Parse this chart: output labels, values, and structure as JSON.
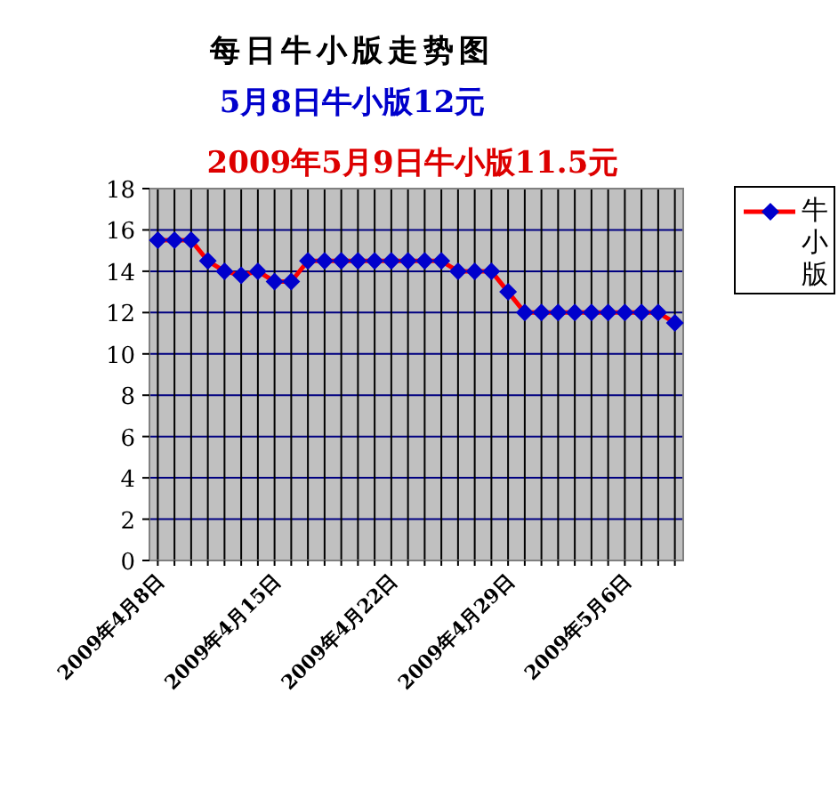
{
  "chart_data": {
    "type": "line",
    "title": "每日牛小版走势图",
    "subtitle": "5月8日牛小版12元",
    "annotations": [
      "2009年5月9日牛小版11.5元"
    ],
    "categories": [
      "2009年4月8日",
      null,
      null,
      null,
      null,
      null,
      null,
      "2009年4月15日",
      null,
      null,
      null,
      null,
      null,
      null,
      "2009年4月22日",
      null,
      null,
      null,
      null,
      null,
      null,
      "2009年4月29日",
      null,
      null,
      null,
      null,
      null,
      null,
      "2009年5月6日",
      null,
      null,
      null
    ],
    "series": [
      {
        "name": "牛小版",
        "color": "#ff0000",
        "values": [
          15.5,
          15.5,
          15.5,
          14.5,
          14,
          13.8,
          14,
          13.5,
          13.5,
          14.5,
          14.5,
          14.5,
          14.5,
          14.5,
          14.5,
          14.5,
          14.5,
          14.5,
          14,
          14,
          14,
          13,
          12,
          12,
          12,
          12,
          12,
          12,
          12,
          12,
          12,
          11.5
        ]
      }
    ],
    "ylim": [
      0,
      18
    ],
    "yticks": [
      0,
      2,
      4,
      6,
      8,
      10,
      12,
      14,
      16,
      18
    ],
    "grid": true,
    "legend": "right",
    "marker": "diamond",
    "line_style": "solid"
  }
}
